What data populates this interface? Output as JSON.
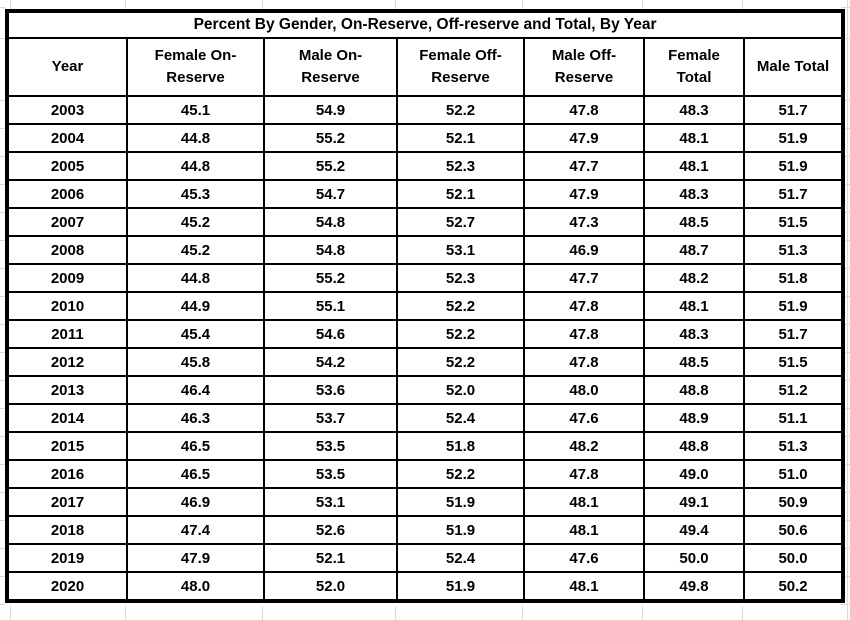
{
  "colors": {
    "table_border": "#000000",
    "gridline": "#d9d9d9",
    "background": "#ffffff",
    "text": "#000000"
  },
  "chart_data": {
    "type": "table",
    "title": "Percent By Gender, On-Reserve, Off-reserve and Total, By Year",
    "columns": [
      "Year",
      "Female On-\nReserve",
      "Male On-\nReserve",
      "Female Off-\nReserve",
      "Male Off-\nReserve",
      "Female\nTotal",
      "Male Total"
    ],
    "rows": [
      [
        "2003",
        "45.1",
        "54.9",
        "52.2",
        "47.8",
        "48.3",
        "51.7"
      ],
      [
        "2004",
        "44.8",
        "55.2",
        "52.1",
        "47.9",
        "48.1",
        "51.9"
      ],
      [
        "2005",
        "44.8",
        "55.2",
        "52.3",
        "47.7",
        "48.1",
        "51.9"
      ],
      [
        "2006",
        "45.3",
        "54.7",
        "52.1",
        "47.9",
        "48.3",
        "51.7"
      ],
      [
        "2007",
        "45.2",
        "54.8",
        "52.7",
        "47.3",
        "48.5",
        "51.5"
      ],
      [
        "2008",
        "45.2",
        "54.8",
        "53.1",
        "46.9",
        "48.7",
        "51.3"
      ],
      [
        "2009",
        "44.8",
        "55.2",
        "52.3",
        "47.7",
        "48.2",
        "51.8"
      ],
      [
        "2010",
        "44.9",
        "55.1",
        "52.2",
        "47.8",
        "48.1",
        "51.9"
      ],
      [
        "2011",
        "45.4",
        "54.6",
        "52.2",
        "47.8",
        "48.3",
        "51.7"
      ],
      [
        "2012",
        "45.8",
        "54.2",
        "52.2",
        "47.8",
        "48.5",
        "51.5"
      ],
      [
        "2013",
        "46.4",
        "53.6",
        "52.0",
        "48.0",
        "48.8",
        "51.2"
      ],
      [
        "2014",
        "46.3",
        "53.7",
        "52.4",
        "47.6",
        "48.9",
        "51.1"
      ],
      [
        "2015",
        "46.5",
        "53.5",
        "51.8",
        "48.2",
        "48.8",
        "51.3"
      ],
      [
        "2016",
        "46.5",
        "53.5",
        "52.2",
        "47.8",
        "49.0",
        "51.0"
      ],
      [
        "2017",
        "46.9",
        "53.1",
        "51.9",
        "48.1",
        "49.1",
        "50.9"
      ],
      [
        "2018",
        "47.4",
        "52.6",
        "51.9",
        "48.1",
        "49.4",
        "50.6"
      ],
      [
        "2019",
        "47.9",
        "52.1",
        "52.4",
        "47.6",
        "50.0",
        "50.0"
      ],
      [
        "2020",
        "48.0",
        "52.0",
        "51.9",
        "48.1",
        "49.8",
        "50.2"
      ]
    ]
  }
}
